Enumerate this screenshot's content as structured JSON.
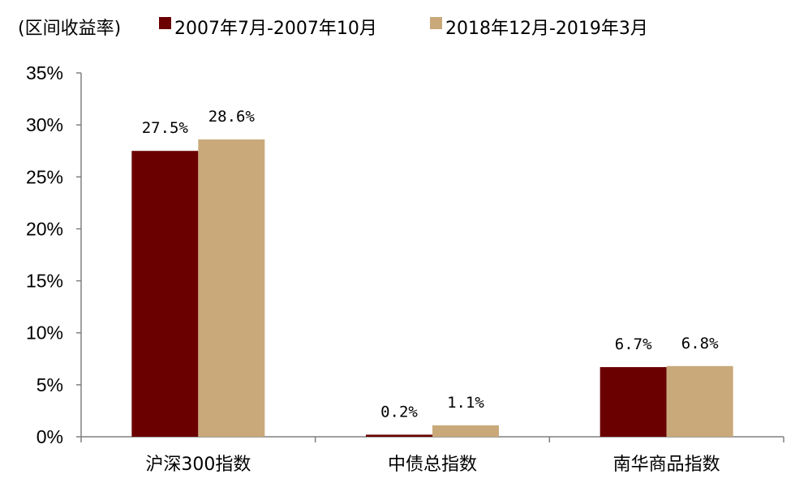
{
  "chart_data": {
    "type": "bar",
    "ylabel": "(区间收益率)",
    "categories": [
      "沪深300指数",
      "中债总指数",
      "南华商品指数"
    ],
    "series": [
      {
        "name": "2007年7月-2007年10月",
        "color": "#6b0000",
        "values": [
          27.5,
          0.2,
          6.7
        ],
        "labels": [
          "27.5%",
          "0.2%",
          "6.7%"
        ]
      },
      {
        "name": "2018年12月-2019年3月",
        "color": "#c9a97a",
        "values": [
          28.6,
          1.1,
          6.8
        ],
        "labels": [
          "28.6%",
          "1.1%",
          "6.8%"
        ]
      }
    ],
    "ylim": [
      0,
      35
    ],
    "yticks": [
      0,
      5,
      10,
      15,
      20,
      25,
      30,
      35
    ],
    "ytick_labels": [
      "0%",
      "5%",
      "10%",
      "15%",
      "20%",
      "25%",
      "30%",
      "35%"
    ],
    "grid": false,
    "legend_position": "top"
  }
}
